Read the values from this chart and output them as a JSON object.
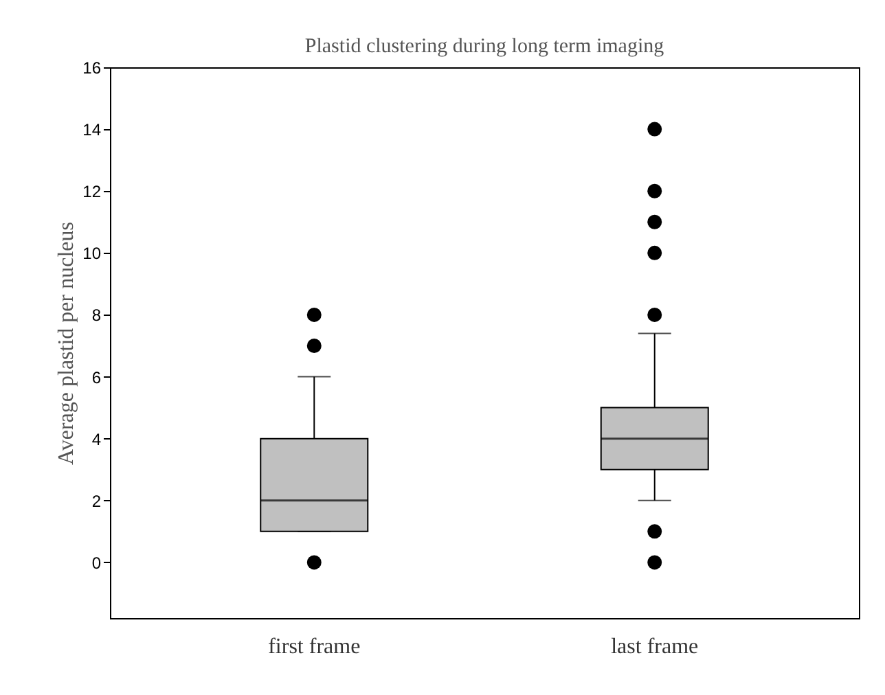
{
  "chart_data": {
    "type": "box",
    "title": "Plastid clustering during long term imaging",
    "ylabel": "Average plastid per nucleus",
    "categories": [
      "first frame",
      "last frame"
    ],
    "ylim": [
      -1.8,
      16
    ],
    "yticks": [
      0,
      2,
      4,
      6,
      8,
      10,
      12,
      14,
      16
    ],
    "grid": false,
    "marker": "circle",
    "series": [
      {
        "color": "#c0c0c0",
        "boxes": [
          {
            "low": 1,
            "q1": 1,
            "median": 2,
            "q3": 4,
            "high": 6,
            "outliers": [
              0,
              7,
              8
            ]
          },
          {
            "low": 2,
            "q1": 3,
            "median": 4,
            "q3": 5,
            "high": 7.4,
            "outliers": [
              0,
              1,
              8,
              10,
              11,
              12,
              14
            ]
          }
        ]
      }
    ]
  }
}
